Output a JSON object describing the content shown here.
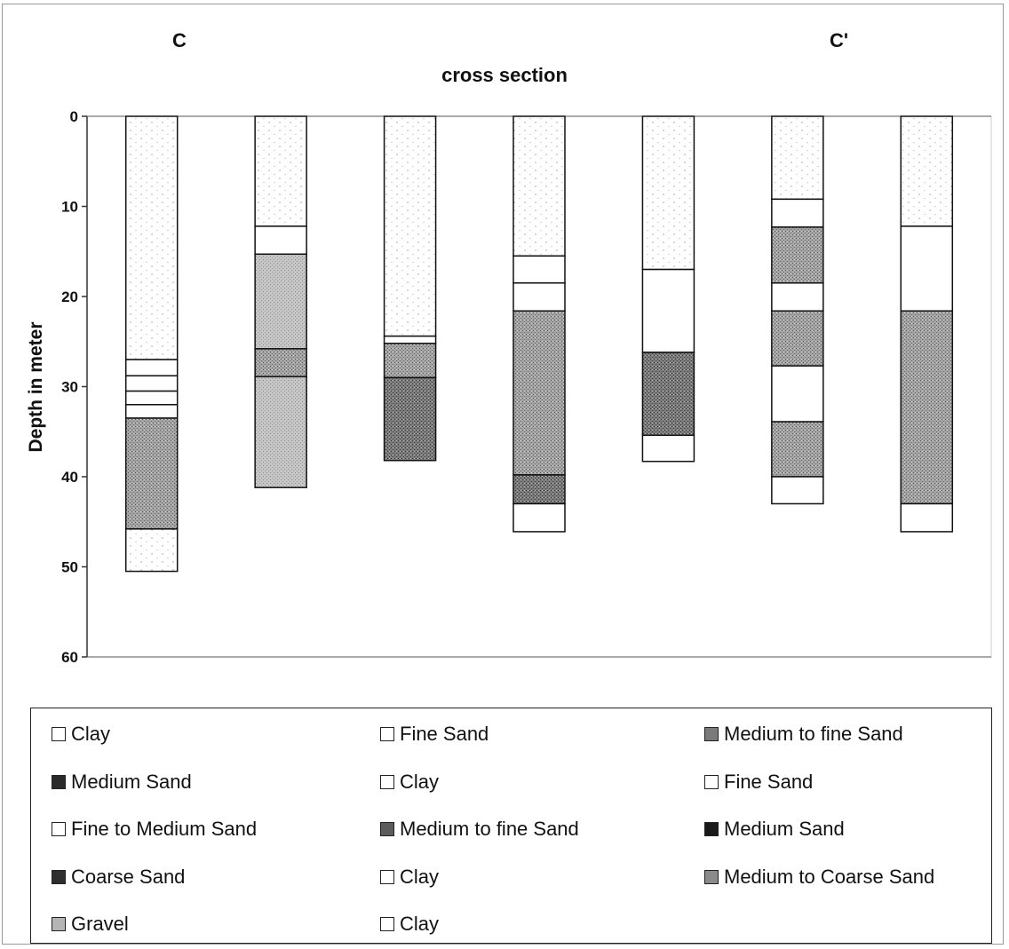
{
  "chart_data": {
    "type": "bar",
    "subtype": "stacked-column",
    "title": "cross section",
    "section_labels": {
      "left": "C",
      "right": "C'"
    },
    "ylabel": "Depth in meter",
    "ylim": [
      0,
      60
    ],
    "y_inverted": true,
    "y_ticks": [
      "0",
      "10",
      "20",
      "30",
      "40",
      "50",
      "60"
    ],
    "grid": false,
    "legend_position": "bottom",
    "legend": [
      {
        "label": "Clay",
        "color": "#ffffff"
      },
      {
        "label": "Fine Sand",
        "color": "#ffffff"
      },
      {
        "label": "Medium to fine Sand",
        "color": "#7a7a7a"
      },
      {
        "label": "Medium Sand",
        "color": "#2a2a2a"
      },
      {
        "label": "Clay",
        "color": "#ffffff"
      },
      {
        "label": "Fine Sand",
        "color": "#ffffff"
      },
      {
        "label": "Fine to Medium Sand",
        "color": "#ffffff"
      },
      {
        "label": "Medium to fine Sand",
        "color": "#5c5c5c"
      },
      {
        "label": "Medium Sand",
        "color": "#1a1a1a"
      },
      {
        "label": "Coarse Sand",
        "color": "#2e2e2e"
      },
      {
        "label": "Clay",
        "color": "#ffffff"
      },
      {
        "label": "Medium to Coarse Sand",
        "color": "#8a8a8a"
      },
      {
        "label": "Gravel",
        "color": "#b5b5b5"
      },
      {
        "label": "Clay",
        "color": "#ffffff"
      }
    ],
    "columns": [
      {
        "layers": [
          {
            "top": 0,
            "bottom": 27,
            "fill": "dots"
          },
          {
            "top": 27,
            "bottom": 28.8,
            "fill": "white"
          },
          {
            "top": 28.8,
            "bottom": 30.5,
            "fill": "white"
          },
          {
            "top": 30.5,
            "bottom": 32,
            "fill": "white"
          },
          {
            "top": 32,
            "bottom": 33.5,
            "fill": "white"
          },
          {
            "top": 33.5,
            "bottom": 45.8,
            "fill": "medgray"
          },
          {
            "top": 45.8,
            "bottom": 50.5,
            "fill": "dots"
          }
        ]
      },
      {
        "layers": [
          {
            "top": 0,
            "bottom": 12.2,
            "fill": "dots"
          },
          {
            "top": 12.2,
            "bottom": 15.3,
            "fill": "white"
          },
          {
            "top": 15.3,
            "bottom": 25.8,
            "fill": "lightgray"
          },
          {
            "top": 25.8,
            "bottom": 28.9,
            "fill": "medgray"
          },
          {
            "top": 28.9,
            "bottom": 41.2,
            "fill": "lightgray"
          }
        ]
      },
      {
        "layers": [
          {
            "top": 0,
            "bottom": 24.4,
            "fill": "dots"
          },
          {
            "top": 24.4,
            "bottom": 25.2,
            "fill": "white"
          },
          {
            "top": 25.2,
            "bottom": 29,
            "fill": "medgray"
          },
          {
            "top": 29,
            "bottom": 38.2,
            "fill": "darkgray"
          }
        ]
      },
      {
        "layers": [
          {
            "top": 0,
            "bottom": 15.5,
            "fill": "dots"
          },
          {
            "top": 15.5,
            "bottom": 18.5,
            "fill": "white"
          },
          {
            "top": 18.5,
            "bottom": 21.6,
            "fill": "white"
          },
          {
            "top": 21.6,
            "bottom": 39.8,
            "fill": "medgray"
          },
          {
            "top": 39.8,
            "bottom": 43,
            "fill": "darkgray"
          },
          {
            "top": 43,
            "bottom": 46.1,
            "fill": "white"
          }
        ]
      },
      {
        "layers": [
          {
            "top": 0,
            "bottom": 17,
            "fill": "dots"
          },
          {
            "top": 17,
            "bottom": 26.2,
            "fill": "white"
          },
          {
            "top": 26.2,
            "bottom": 35.4,
            "fill": "darkgray"
          },
          {
            "top": 35.4,
            "bottom": 38.3,
            "fill": "white"
          }
        ]
      },
      {
        "layers": [
          {
            "top": 0,
            "bottom": 9.2,
            "fill": "dots"
          },
          {
            "top": 9.2,
            "bottom": 12.3,
            "fill": "white"
          },
          {
            "top": 12.3,
            "bottom": 18.5,
            "fill": "medgray"
          },
          {
            "top": 18.5,
            "bottom": 21.6,
            "fill": "white"
          },
          {
            "top": 21.6,
            "bottom": 27.7,
            "fill": "medgray"
          },
          {
            "top": 27.7,
            "bottom": 33.9,
            "fill": "white"
          },
          {
            "top": 33.9,
            "bottom": 40,
            "fill": "medgray"
          },
          {
            "top": 40,
            "bottom": 43,
            "fill": "white"
          }
        ]
      },
      {
        "layers": [
          {
            "top": 0,
            "bottom": 12.2,
            "fill": "dots"
          },
          {
            "top": 12.2,
            "bottom": 21.6,
            "fill": "white"
          },
          {
            "top": 21.6,
            "bottom": 43,
            "fill": "medgray"
          },
          {
            "top": 43,
            "bottom": 46.1,
            "fill": "white"
          }
        ]
      }
    ]
  }
}
